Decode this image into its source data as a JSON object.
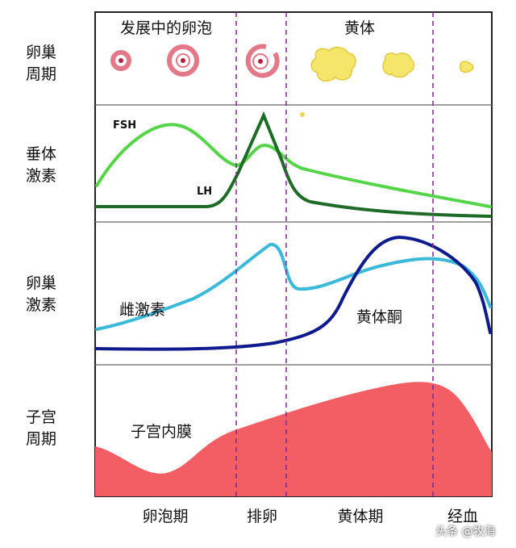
{
  "row_labels": [
    "卵巢周期",
    "垂体激素",
    "卵巢激素",
    "子宫周期"
  ],
  "header": {
    "follicle": "发展中的卵泡",
    "corpus_luteum": "黄体"
  },
  "curve_labels": {
    "fsh": "FSH",
    "lh": "LH",
    "estrogen": "雌激素",
    "progesterone": "黄体酮",
    "endometrium": "子宫内膜"
  },
  "phases": [
    "卵泡期",
    "排卵",
    "黄体期",
    "经血"
  ],
  "watermark": "头条 @牧海"
}
